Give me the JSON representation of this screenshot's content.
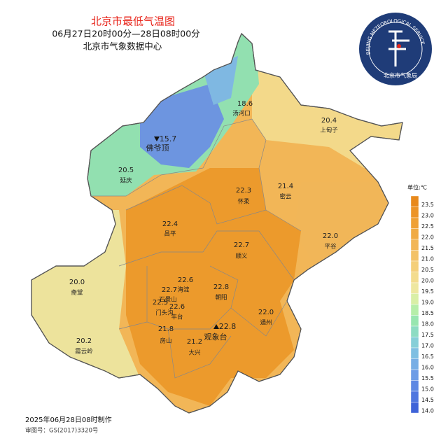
{
  "header": {
    "title": "北京市最低气温图",
    "subtitle": "06月27日20时00分—28日08时00分",
    "source": "北京市气象数据中心"
  },
  "logo": {
    "ring_text": "BEIJING METEOROLOGICAL SERVICE",
    "name": "北京市气象局"
  },
  "stations": [
    {
      "value": "18.6",
      "name": "汤河口"
    },
    {
      "value": "20.4",
      "name": "上甸子"
    },
    {
      "value": "15.7",
      "name": "佛爷顶"
    },
    {
      "value": "20.5",
      "name": "延庆"
    },
    {
      "value": "22.3",
      "name": "怀柔"
    },
    {
      "value": "21.4",
      "name": "密云"
    },
    {
      "value": "22.4",
      "name": "昌平"
    },
    {
      "value": "22.0",
      "name": "平谷"
    },
    {
      "value": "22.7",
      "name": "顺义"
    },
    {
      "value": "20.0",
      "name": "斋堂"
    },
    {
      "value": "22.6",
      "name": "海淀"
    },
    {
      "value": "22.7",
      "name": "石景山"
    },
    {
      "value": "22.8",
      "name": "朝阳"
    },
    {
      "value": "22.6",
      "name": "丰台"
    },
    {
      "value": "22.5",
      "name": "门头沟"
    },
    {
      "value": "22.0",
      "name": "通州"
    },
    {
      "value": "22.8",
      "name": "观象台"
    },
    {
      "value": "21.8",
      "name": "房山"
    },
    {
      "value": "21.2",
      "name": "大兴"
    },
    {
      "value": "20.2",
      "name": "霞云岭"
    }
  ],
  "colorbar": {
    "unit": "单位:℃",
    "levels": [
      {
        "value": 23.5,
        "label": "23.5",
        "color": "#e8891c"
      },
      {
        "value": 23,
        "label": "23.0",
        "color": "#ec9428"
      },
      {
        "value": 22.5,
        "label": "22.5",
        "color": "#efa035"
      },
      {
        "value": 22,
        "label": "22.0",
        "color": "#f0ab45"
      },
      {
        "value": 21.5,
        "label": "21.5",
        "color": "#f2b657"
      },
      {
        "value": 21,
        "label": "21.0",
        "color": "#f3c267"
      },
      {
        "value": 20.5,
        "label": "20.5",
        "color": "#f4cf7a"
      },
      {
        "value": 20,
        "label": "20.0",
        "color": "#f3dc8e"
      },
      {
        "value": 19.5,
        "label": "19.5",
        "color": "#eee7a0"
      },
      {
        "value": 19,
        "label": "19.0",
        "color": "#d9efa6"
      },
      {
        "value": 18.5,
        "label": "18.5",
        "color": "#b6eea9"
      },
      {
        "value": 18,
        "label": "18.0",
        "color": "#98e6b0"
      },
      {
        "value": 17.5,
        "label": "17.5",
        "color": "#8ddcc3"
      },
      {
        "value": 17,
        "label": "17.0",
        "color": "#86cfd8"
      },
      {
        "value": 16.5,
        "label": "16.5",
        "color": "#7fbfe2"
      },
      {
        "value": 16,
        "label": "16.0",
        "color": "#78aee5"
      },
      {
        "value": 15.5,
        "label": "15.5",
        "color": "#6d9ce6"
      },
      {
        "value": 15,
        "label": "15.0",
        "color": "#5e88e3"
      },
      {
        "value": 14.5,
        "label": "14.5",
        "color": "#4f76df"
      },
      {
        "value": 14,
        "label": "14.0",
        "color": "#3f63d8"
      }
    ]
  },
  "footer": {
    "made": "2025年06月28日08时制作",
    "approval": "审图号：GS(2017)3320号"
  }
}
